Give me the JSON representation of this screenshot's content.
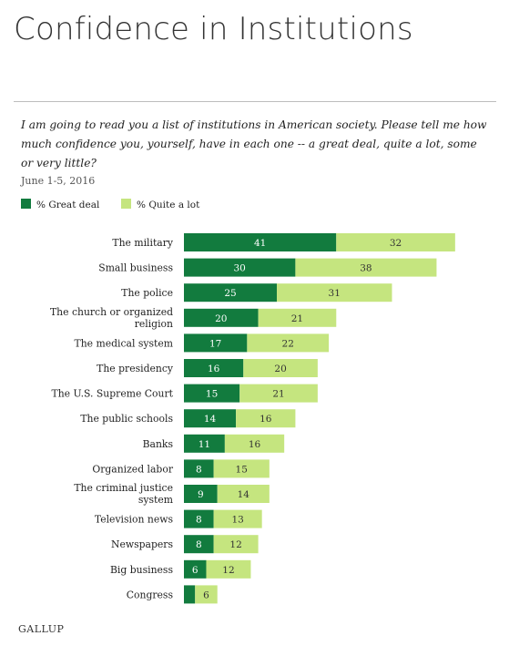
{
  "title": "Confidence in Institutions",
  "question": "I am going to read you a list of institutions in American society. Please tell me how much confidence you, yourself, have in each one -- a great deal, quite a lot, some or very little?",
  "date": "June 1-5, 2016",
  "source": "GALLUP",
  "colors": {
    "great_deal": "#127b3e",
    "quite_a_lot": "#c5e57f"
  },
  "chart_data": {
    "type": "bar",
    "orientation": "horizontal",
    "stacked": true,
    "legend_placement": "top-left",
    "categories": [
      "The military",
      "Small business",
      "The police",
      "The church or organized religion",
      "The medical system",
      "The presidency",
      "The U.S. Supreme Court",
      "The public schools",
      "Banks",
      "Organized labor",
      "The criminal justice system",
      "Television news",
      "Newspapers",
      "Big business",
      "Congress"
    ],
    "series": [
      {
        "name": "% Great deal",
        "values": [
          41,
          30,
          25,
          20,
          17,
          16,
          15,
          14,
          11,
          8,
          9,
          8,
          8,
          6,
          3
        ],
        "labels": [
          "41",
          "30",
          "25",
          "20",
          "17",
          "16",
          "15",
          "14",
          "11",
          "8",
          "9",
          "8",
          "8",
          "6",
          ""
        ]
      },
      {
        "name": "% Quite a lot",
        "values": [
          32,
          38,
          31,
          21,
          22,
          20,
          21,
          16,
          16,
          15,
          14,
          13,
          12,
          12,
          6
        ],
        "labels": [
          "32",
          "38",
          "31",
          "21",
          "22",
          "20",
          "21",
          "16",
          "16",
          "15",
          "14",
          "13",
          "12",
          "12",
          "6"
        ]
      }
    ],
    "xlim": [
      0,
      100
    ],
    "grid": false
  }
}
